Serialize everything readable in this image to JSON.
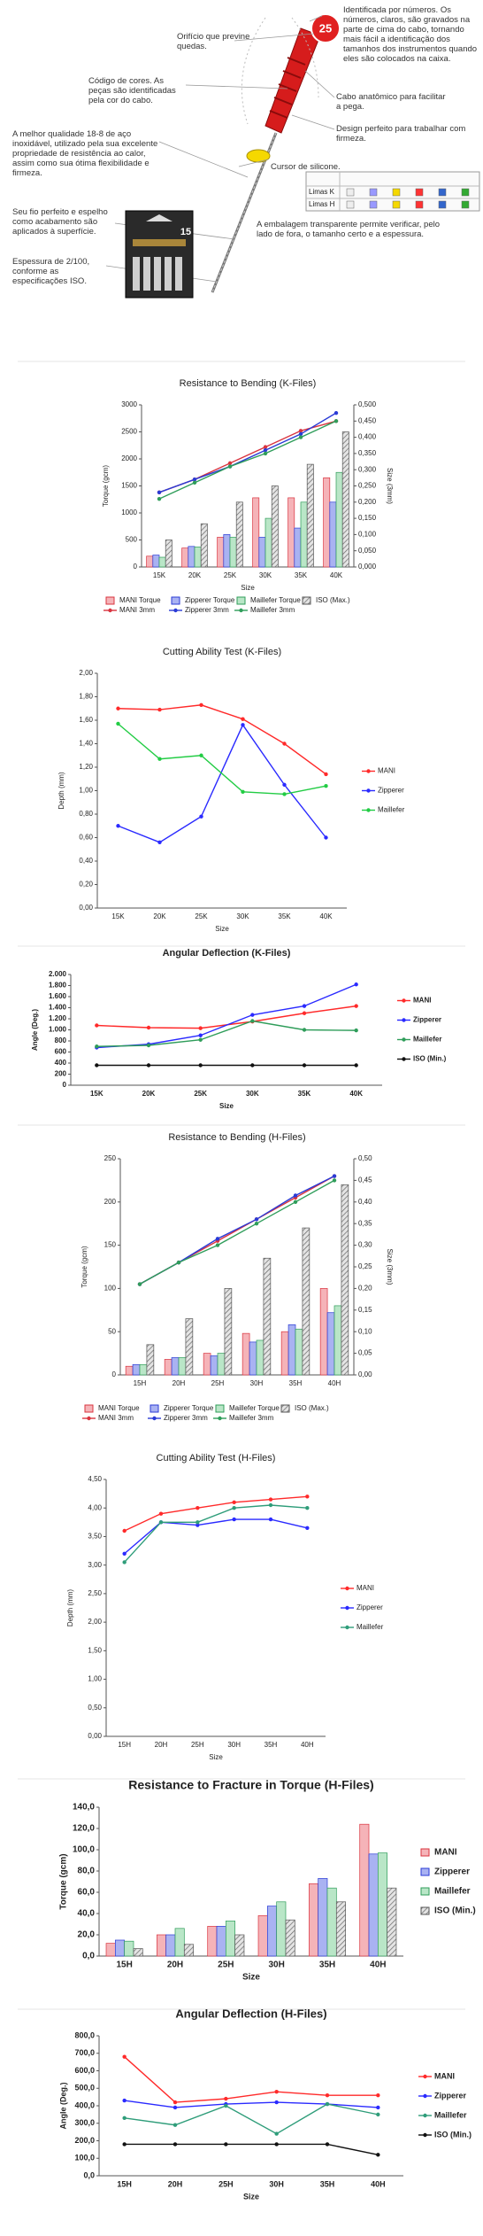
{
  "product": {
    "number": "25",
    "package_number": "15",
    "table_rows": [
      "Limas K",
      "Limas H"
    ],
    "notes": [
      "Orifício que previne quedas.",
      "Código de cores. As peças são identificadas pela cor do cabo.",
      "A melhor qualidade 18-8 de aço inoxidável, utilizado pela sua excelente propriedade de resistência ao calor, assim como sua ótima flexibilidade e firmeza.",
      "Seu fio perfeito e espelho como acabamento são aplicados à superfície.",
      "Espessura de 2/100, conforme as especificações ISO.",
      "Identificada por números. Os números, claros, são gravados na parte de cima do cabo, tornando mais fácil a identificação dos tamanhos dos instrumentos quando eles são colocados na caixa.",
      "Cabo anatômico para facilitar a pega.",
      "Design perfeito para trabalhar com firmeza.",
      "Cursor de silicone.",
      "A embalagem transparente permite verificar, pelo lado de fora, o tamanho certo e a espessura."
    ]
  },
  "chart_data": [
    {
      "type": "bar",
      "title": "Resistance to Bending (K-Files)",
      "ylabel": "Torque (gcm)",
      "y2label": "Size (3mm)",
      "xlabel": "Size",
      "legend": "bottom",
      "categories": [
        "15K",
        "20K",
        "25K",
        "30K",
        "35K",
        "40K"
      ],
      "ylim": [
        0,
        3000
      ],
      "yticks": [
        0,
        500,
        1000,
        1500,
        2000,
        2500,
        3000
      ],
      "y2lim": [
        0,
        0.5
      ],
      "y2ticks": [
        {
          "value": 0,
          "label": "0,000"
        },
        {
          "value": 0.05,
          "label": "0,050"
        },
        {
          "value": 0.1,
          "label": "0,100"
        },
        {
          "value": 0.15,
          "label": "0,150"
        },
        {
          "value": 0.2,
          "label": "0,200"
        },
        {
          "value": 0.25,
          "label": "0,250"
        },
        {
          "value": 0.3,
          "label": "0,300"
        },
        {
          "value": 0.35,
          "label": "0,350"
        },
        {
          "value": 0.4,
          "label": "0,400"
        },
        {
          "value": 0.45,
          "label": "0,450"
        },
        {
          "value": 0.5,
          "label": "0,500"
        }
      ],
      "series": [
        {
          "name": "MANI Torque",
          "type": "bar",
          "color": "#d9343f",
          "fill": "#f5b3b8",
          "values": [
            200,
            350,
            550,
            1280,
            1280,
            1650
          ]
        },
        {
          "name": "Zipperer Torque",
          "type": "bar",
          "color": "#2a3bd6",
          "fill": "#a9b2f2",
          "values": [
            220,
            380,
            600,
            550,
            720,
            1200
          ]
        },
        {
          "name": "Maillefer Torque",
          "type": "bar",
          "color": "#2f9d5a",
          "fill": "#b9e6c7",
          "values": [
            180,
            370,
            550,
            900,
            1200,
            1750
          ]
        },
        {
          "name": "ISO (Max.)",
          "type": "bar",
          "color": "#555555",
          "fill": "#dddddd",
          "pattern": "hatch",
          "values": [
            500,
            800,
            1200,
            1500,
            1900,
            2500
          ]
        },
        {
          "name": "MANI 3mm",
          "type": "line",
          "axis": "y2",
          "color": "#d9343f",
          "values": [
            0.23,
            0.27,
            0.32,
            0.37,
            0.42,
            0.45
          ]
        },
        {
          "name": "Zipperer 3mm",
          "type": "line",
          "axis": "y2",
          "color": "#2a3bd6",
          "values": [
            0.23,
            0.27,
            0.31,
            0.36,
            0.41,
            0.475
          ]
        },
        {
          "name": "Maillefer 3mm",
          "type": "line",
          "axis": "y2",
          "color": "#2f9d5a",
          "values": [
            0.21,
            0.26,
            0.31,
            0.35,
            0.4,
            0.45
          ]
        }
      ]
    },
    {
      "type": "line",
      "title": "Cutting Ability Test (K-Files)",
      "ylabel": "Depth (mm)",
      "xlabel": "Size",
      "legend": "right",
      "categories": [
        "15K",
        "20K",
        "25K",
        "30K",
        "35K",
        "40K"
      ],
      "ylim": [
        0,
        2
      ],
      "yticks": [
        {
          "value": 0,
          "label": "0,00"
        },
        {
          "value": 0.2,
          "label": "0,20"
        },
        {
          "value": 0.4,
          "label": "0,40"
        },
        {
          "value": 0.6,
          "label": "0,60"
        },
        {
          "value": 0.8,
          "label": "0,80"
        },
        {
          "value": 1,
          "label": "1,00"
        },
        {
          "value": 1.2,
          "label": "1,20"
        },
        {
          "value": 1.4,
          "label": "1,40"
        },
        {
          "value": 1.6,
          "label": "1,60"
        },
        {
          "value": 1.8,
          "label": "1,80"
        },
        {
          "value": 2,
          "label": "2,00"
        }
      ],
      "series": [
        {
          "name": "MANI",
          "color": "#ff2a2a",
          "values": [
            1.7,
            1.69,
            1.73,
            1.61,
            1.4,
            1.14
          ]
        },
        {
          "name": "Zipperer",
          "color": "#2a2aff",
          "values": [
            0.7,
            0.56,
            0.78,
            1.56,
            1.05,
            0.6
          ]
        },
        {
          "name": "Maillefer",
          "color": "#22cc44",
          "values": [
            1.57,
            1.27,
            1.3,
            0.99,
            0.97,
            1.04
          ]
        }
      ]
    },
    {
      "type": "line",
      "title": "Angular Deflection (K-Files)",
      "ylabel": "Angle (Deg.)",
      "xlabel": "Size",
      "legend": "right",
      "categories": [
        "15K",
        "20K",
        "25K",
        "30K",
        "35K",
        "40K"
      ],
      "ylim": [
        0,
        2000
      ],
      "yticks": [
        0,
        200,
        400,
        600,
        800,
        {
          "value": 1000,
          "label": "1.000"
        },
        {
          "value": 1200,
          "label": "1.200"
        },
        {
          "value": 1400,
          "label": "1.400"
        },
        {
          "value": 1600,
          "label": "1.600"
        },
        {
          "value": 1800,
          "label": "1.800"
        },
        {
          "value": 2000,
          "label": "2.000"
        }
      ],
      "series": [
        {
          "name": "MANI",
          "color": "#ff2a2a",
          "values": [
            1080,
            1040,
            1030,
            1150,
            1300,
            1430
          ]
        },
        {
          "name": "Zipperer",
          "color": "#2a2aff",
          "values": [
            680,
            740,
            900,
            1270,
            1430,
            1820
          ]
        },
        {
          "name": "Maillefer",
          "color": "#2f9d5a",
          "values": [
            700,
            720,
            820,
            1160,
            1000,
            990
          ]
        },
        {
          "name": "ISO (Min.)",
          "color": "#111111",
          "values": [
            360,
            360,
            360,
            360,
            360,
            360
          ]
        }
      ]
    },
    {
      "type": "bar",
      "title": "Resistance to Bending (H-Files)",
      "ylabel": "Torque (gcm)",
      "y2label": "Size (3mm)",
      "legend": "bottom",
      "categories": [
        "15H",
        "20H",
        "25H",
        "30H",
        "35H",
        "40H"
      ],
      "ylim": [
        0,
        250
      ],
      "yticks": [
        0,
        50,
        100,
        150,
        200,
        250
      ],
      "y2lim": [
        0,
        0.5
      ],
      "y2ticks": [
        {
          "value": 0,
          "label": "0,00"
        },
        {
          "value": 0.05,
          "label": "0,05"
        },
        {
          "value": 0.1,
          "label": "0,10"
        },
        {
          "value": 0.15,
          "label": "0,15"
        },
        {
          "value": 0.2,
          "label": "0,20"
        },
        {
          "value": 0.25,
          "label": "0,25"
        },
        {
          "value": 0.3,
          "label": "0,30"
        },
        {
          "value": 0.35,
          "label": "0,35"
        },
        {
          "value": 0.4,
          "label": "0,40"
        },
        {
          "value": 0.45,
          "label": "0,45"
        },
        {
          "value": 0.5,
          "label": "0,50"
        }
      ],
      "series": [
        {
          "name": "MANI Torque",
          "type": "bar",
          "color": "#d9343f",
          "fill": "#f5b3b8",
          "values": [
            10,
            18,
            25,
            48,
            50,
            100
          ]
        },
        {
          "name": "Zipperer Torque",
          "type": "bar",
          "color": "#2a3bd6",
          "fill": "#a9b2f2",
          "values": [
            12,
            20,
            22,
            38,
            58,
            72
          ]
        },
        {
          "name": "Maillefer Torque",
          "type": "bar",
          "color": "#2f9d5a",
          "fill": "#b9e6c7",
          "values": [
            12,
            20,
            25,
            40,
            53,
            80
          ]
        },
        {
          "name": "ISO (Max.)",
          "type": "bar",
          "color": "#555555",
          "fill": "#dddddd",
          "pattern": "hatch",
          "values": [
            35,
            65,
            100,
            135,
            170,
            220
          ]
        },
        {
          "name": "MANI 3mm",
          "type": "line",
          "axis": "y2",
          "color": "#d9343f",
          "values": [
            0.21,
            0.26,
            0.31,
            0.36,
            0.41,
            0.46
          ]
        },
        {
          "name": "Zipperer 3mm",
          "type": "line",
          "axis": "y2",
          "color": "#2a3bd6",
          "values": [
            0.21,
            0.26,
            0.315,
            0.36,
            0.415,
            0.46
          ]
        },
        {
          "name": "Maillefer 3mm",
          "type": "line",
          "axis": "y2",
          "color": "#2f9d5a",
          "values": [
            0.21,
            0.26,
            0.3,
            0.35,
            0.4,
            0.45
          ]
        }
      ]
    },
    {
      "type": "line",
      "title": "Cutting Ability Test (H-Files)",
      "ylabel": "Depth (mm)",
      "xlabel": "Size",
      "legend": "right",
      "categories": [
        "15H",
        "20H",
        "25H",
        "30H",
        "35H",
        "40H"
      ],
      "ylim": [
        0,
        4.5
      ],
      "yticks": [
        {
          "value": 0,
          "label": "0,00"
        },
        {
          "value": 0.5,
          "label": "0,50"
        },
        {
          "value": 1,
          "label": "1,00"
        },
        {
          "value": 1.5,
          "label": "1,50"
        },
        {
          "value": 2,
          "label": "2,00"
        },
        {
          "value": 2.5,
          "label": "2,50"
        },
        {
          "value": 3,
          "label": "3,00"
        },
        {
          "value": 3.5,
          "label": "3,50"
        },
        {
          "value": 4,
          "label": "4,00"
        },
        {
          "value": 4.5,
          "label": "4,50"
        }
      ],
      "series": [
        {
          "name": "MANI",
          "color": "#ff2a2a",
          "values": [
            3.6,
            3.9,
            4.0,
            4.1,
            4.15,
            4.2
          ]
        },
        {
          "name": "Zipperer",
          "color": "#2a2aff",
          "values": [
            3.2,
            3.75,
            3.7,
            3.8,
            3.8,
            3.65
          ]
        },
        {
          "name": "Maillefer",
          "color": "#2f9d7a",
          "values": [
            3.05,
            3.75,
            3.75,
            4.0,
            4.05,
            4.0
          ]
        }
      ]
    },
    {
      "type": "bar",
      "title": "Resistance to Fracture in Torque (H-Files)",
      "ylabel": "Torque (gcm)",
      "xlabel": "Size",
      "legend": "right",
      "categories": [
        "15H",
        "20H",
        "25H",
        "30H",
        "35H",
        "40H"
      ],
      "ylim": [
        0,
        140
      ],
      "yticks": [
        {
          "value": 0,
          "label": "0,0"
        },
        {
          "value": 20,
          "label": "20,0"
        },
        {
          "value": 40,
          "label": "40,0"
        },
        {
          "value": 60,
          "label": "60,0"
        },
        {
          "value": 80,
          "label": "80,0"
        },
        {
          "value": 100,
          "label": "100,0"
        },
        {
          "value": 120,
          "label": "120,0"
        },
        {
          "value": 140,
          "label": "140,0"
        }
      ],
      "series": [
        {
          "name": "MANI",
          "type": "bar",
          "color": "#d9343f",
          "fill": "#f5b3b8",
          "values": [
            12,
            20,
            28,
            38,
            68,
            124
          ]
        },
        {
          "name": "Zipperer",
          "type": "bar",
          "color": "#2a3bd6",
          "fill": "#a9b2f2",
          "values": [
            15,
            20,
            28,
            47,
            73,
            96
          ]
        },
        {
          "name": "Maillefer",
          "type": "bar",
          "color": "#2f9d5a",
          "fill": "#b9e6c7",
          "values": [
            14,
            26,
            33,
            51,
            64,
            97
          ]
        },
        {
          "name": "ISO (Min.)",
          "type": "bar",
          "color": "#555555",
          "fill": "#dddddd",
          "pattern": "hatch",
          "values": [
            7,
            11,
            20,
            34,
            51,
            64
          ]
        }
      ]
    },
    {
      "type": "line",
      "title": "Angular Deflection (H-Files)",
      "ylabel": "Angle (Deg.)",
      "xlabel": "Size",
      "legend": "right",
      "categories": [
        "15H",
        "20H",
        "25H",
        "30H",
        "35H",
        "40H"
      ],
      "ylim": [
        0,
        800
      ],
      "yticks": [
        {
          "value": 0,
          "label": "0,0"
        },
        {
          "value": 100,
          "label": "100,0"
        },
        {
          "value": 200,
          "label": "200,0"
        },
        {
          "value": 300,
          "label": "300,0"
        },
        {
          "value": 400,
          "label": "400,0"
        },
        {
          "value": 500,
          "label": "500,0"
        },
        {
          "value": 600,
          "label": "600,0"
        },
        {
          "value": 700,
          "label": "700,0"
        },
        {
          "value": 800,
          "label": "800,0"
        }
      ],
      "series": [
        {
          "name": "MANI",
          "color": "#ff2a2a",
          "values": [
            680,
            420,
            440,
            480,
            460,
            460
          ]
        },
        {
          "name": "Zipperer",
          "color": "#2a2aff",
          "values": [
            430,
            390,
            410,
            420,
            410,
            390
          ]
        },
        {
          "name": "Maillefer",
          "color": "#2f9d7a",
          "values": [
            330,
            290,
            400,
            240,
            410,
            350
          ]
        },
        {
          "name": "ISO (Min.)",
          "color": "#111111",
          "values": [
            180,
            180,
            180,
            180,
            180,
            120
          ]
        }
      ]
    }
  ]
}
